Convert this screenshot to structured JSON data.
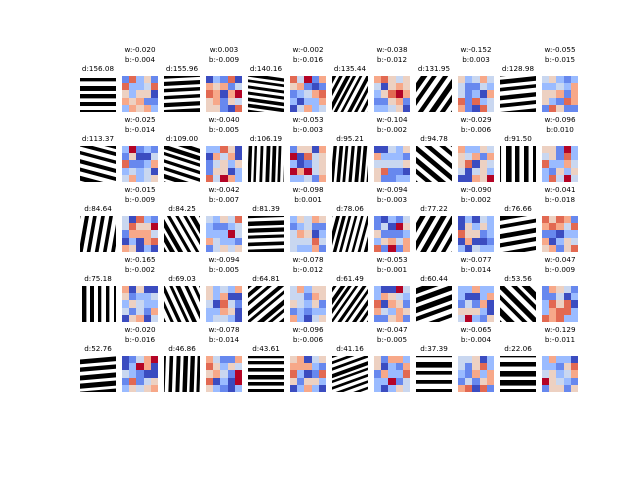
{
  "chart_data": {
    "type": "heatmap",
    "title": "",
    "colormap": "coolwarm",
    "patch_colors": {
      "foreground": "#000000",
      "background": "#ffffff"
    },
    "pairs": [
      {
        "patch_label": "d:156.08",
        "weight_label": "w:-0.020",
        "bias_label": "b:-0.004",
        "orientation": 0
      },
      {
        "patch_label": "d:155.96",
        "weight_label": "w:0.003",
        "bias_label": "b:-0.009",
        "orientation": 3
      },
      {
        "patch_label": "d:140.16",
        "weight_label": "w:-0.002",
        "bias_label": "b:-0.016",
        "orientation": -8
      },
      {
        "patch_label": "d:135.44",
        "weight_label": "w:-0.038",
        "bias_label": "b:-0.012",
        "orientation": 62
      },
      {
        "patch_label": "d:131.95",
        "weight_label": "w:-0.152",
        "bias_label": "b:0.003",
        "orientation": 55
      },
      {
        "patch_label": "d:128.98",
        "weight_label": "w:-0.055",
        "bias_label": "b:-0.015",
        "orientation": 6
      },
      {
        "patch_label": "d:113.37",
        "weight_label": "w:-0.025",
        "bias_label": "b:-0.014",
        "orientation": -15
      },
      {
        "patch_label": "d:109.00",
        "weight_label": "w:-0.040",
        "bias_label": "b:-0.005",
        "orientation": -18
      },
      {
        "patch_label": "d:106.19",
        "weight_label": "w:-0.053",
        "bias_label": "b:-0.003",
        "orientation": 88
      },
      {
        "patch_label": "d:95.21",
        "weight_label": "w:-0.104",
        "bias_label": "b:-0.002",
        "orientation": 85
      },
      {
        "patch_label": "d:94.78",
        "weight_label": "w:-0.029",
        "bias_label": "b:-0.006",
        "orientation": -40
      },
      {
        "patch_label": "d:91.50",
        "weight_label": "w:-0.096",
        "bias_label": "b:0.010",
        "orientation": 90
      },
      {
        "patch_label": "d:84.64",
        "weight_label": "w:-0.015",
        "bias_label": "b:-0.009",
        "orientation": 80
      },
      {
        "patch_label": "d:84.25",
        "weight_label": "w:-0.042",
        "bias_label": "b:-0.007",
        "orientation": -60
      },
      {
        "patch_label": "d:81.39",
        "weight_label": "w:-0.098",
        "bias_label": "b:0.001",
        "orientation": 2
      },
      {
        "patch_label": "d:78.06",
        "weight_label": "w:-0.094",
        "bias_label": "b:-0.003",
        "orientation": 75
      },
      {
        "patch_label": "d:77.22",
        "weight_label": "w:-0.090",
        "bias_label": "b:-0.002",
        "orientation": 60
      },
      {
        "patch_label": "d:76.66",
        "weight_label": "w:-0.041",
        "bias_label": "b:-0.018",
        "orientation": 10
      },
      {
        "patch_label": "d:75.18",
        "weight_label": "w:-0.165",
        "bias_label": "b:-0.002",
        "orientation": 90
      },
      {
        "patch_label": "d:69.03",
        "weight_label": "w:-0.094",
        "bias_label": "b:-0.005",
        "orientation": -65
      },
      {
        "patch_label": "d:64.81",
        "weight_label": "w:-0.078",
        "bias_label": "b:-0.012",
        "orientation": 40
      },
      {
        "patch_label": "d:61.49",
        "weight_label": "w:-0.053",
        "bias_label": "b:-0.001",
        "orientation": 55
      },
      {
        "patch_label": "d:60.44",
        "weight_label": "w:-0.077",
        "bias_label": "b:-0.014",
        "orientation": 20
      },
      {
        "patch_label": "d:53.56",
        "weight_label": "w:-0.047",
        "bias_label": "b:-0.009",
        "orientation": -45
      },
      {
        "patch_label": "d:52.76",
        "weight_label": "w:-0.020",
        "bias_label": "b:-0.016",
        "orientation": 5
      },
      {
        "patch_label": "d:46.86",
        "weight_label": "w:-0.078",
        "bias_label": "b:-0.014",
        "orientation": 88
      },
      {
        "patch_label": "d:43.61",
        "weight_label": "w:-0.096",
        "bias_label": "b:-0.006",
        "orientation": 0
      },
      {
        "patch_label": "d:41.16",
        "weight_label": "w:-0.047",
        "bias_label": "b:-0.005",
        "orientation": 20
      },
      {
        "patch_label": "d:37.39",
        "weight_label": "w:-0.065",
        "bias_label": "b:-0.004",
        "orientation": 0
      },
      {
        "patch_label": "d:22.06",
        "weight_label": "w:-0.129",
        "bias_label": "b:-0.011",
        "orientation": 0
      }
    ]
  }
}
